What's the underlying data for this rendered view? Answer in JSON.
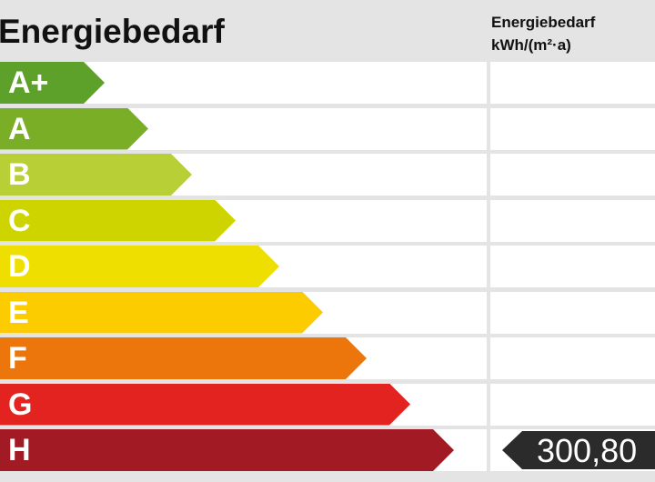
{
  "chart_data": {
    "type": "bar",
    "title": "Energiebedarf",
    "column_header": [
      "Energiebedarf",
      "kWh/(m²·a)"
    ],
    "categories": [
      "A+",
      "A",
      "B",
      "C",
      "D",
      "E",
      "F",
      "G",
      "H"
    ],
    "colors": [
      "#5da12b",
      "#7aae27",
      "#b8cf36",
      "#cdd400",
      "#efdf00",
      "#fccb00",
      "#ec760c",
      "#e22320",
      "#a21a23"
    ],
    "marker": {
      "category": "H",
      "value": "300,80",
      "color": "#2b2b2b"
    }
  }
}
